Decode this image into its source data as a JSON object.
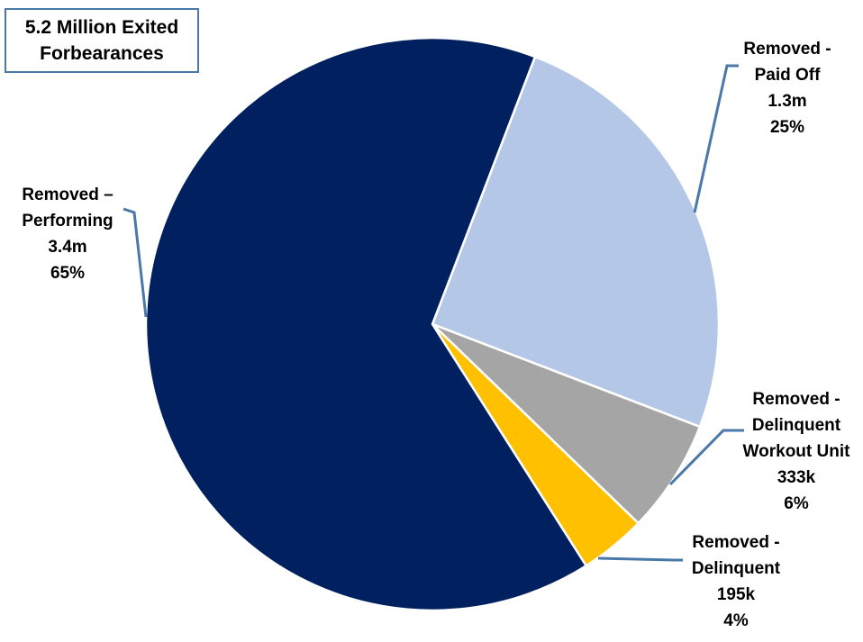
{
  "chart_data": {
    "type": "pie",
    "title_lines": [
      "5.2 Million Exited",
      "Forbearances"
    ],
    "slices": [
      {
        "label_lines": [
          "Removed -",
          "Paid Off"
        ],
        "amount": "1.3m",
        "percent_label": "25%",
        "value": 25,
        "color": "#b4c7e7"
      },
      {
        "label_lines": [
          "Removed -",
          "Delinquent",
          "Workout Unit"
        ],
        "amount": "333k",
        "percent_label": "6%",
        "value": 6.4,
        "color": "#a5a5a5"
      },
      {
        "label_lines": [
          "Removed -",
          "Delinquent"
        ],
        "amount": "195k",
        "percent_label": "4%",
        "value": 3.75,
        "color": "#ffc000"
      },
      {
        "label_lines": [
          "Removed –",
          "Performing"
        ],
        "amount": "3.4m",
        "percent_label": "65%",
        "value": 64.85,
        "color": "#002060"
      }
    ],
    "leader_color": "#4a78a8"
  }
}
